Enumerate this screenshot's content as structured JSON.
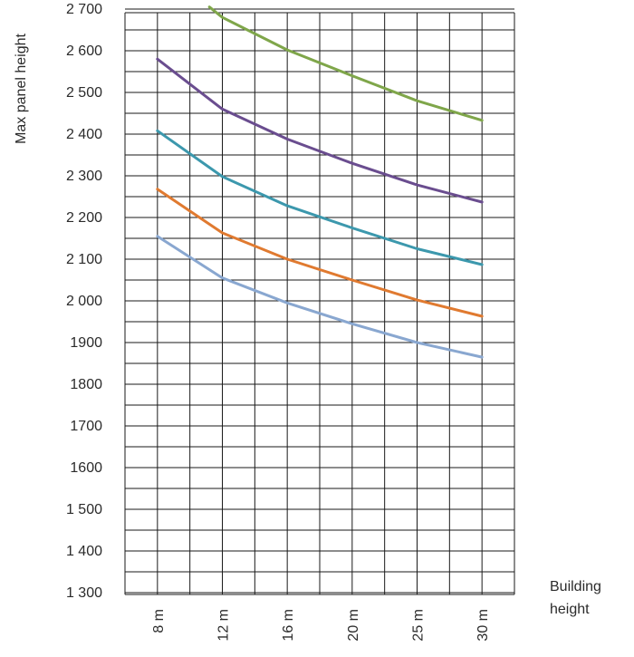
{
  "chart_data": {
    "type": "line",
    "title": "",
    "ylabel": "Max panel height",
    "xlabel_lines": [
      "Building",
      "height"
    ],
    "x_ticks": [
      "8 m",
      "12 m",
      "16 m",
      "20 m",
      "25 m",
      "30 m"
    ],
    "y_ticks": [
      "1 300",
      "1 400",
      "1 500",
      "1600",
      "1700",
      "1800",
      "1900",
      "2 000",
      "2 100",
      "2 200",
      "2 300",
      "2 400",
      "2 500",
      "2 600",
      "2 700"
    ],
    "ylim": [
      1300,
      2700
    ],
    "grid": true,
    "series": [
      {
        "color": "#89a7d0",
        "points": [
          [
            0,
            2155
          ],
          [
            2,
            2055
          ],
          [
            4,
            1995
          ],
          [
            6,
            1945
          ],
          [
            8,
            1900
          ],
          [
            10,
            1865
          ]
        ]
      },
      {
        "color": "#e07a30",
        "points": [
          [
            0,
            2268
          ],
          [
            2,
            2163
          ],
          [
            4,
            2100
          ],
          [
            6,
            2050
          ],
          [
            8,
            2002
          ],
          [
            10,
            1963
          ]
        ]
      },
      {
        "color": "#3c98ad",
        "points": [
          [
            0,
            2408
          ],
          [
            2,
            2298
          ],
          [
            4,
            2228
          ],
          [
            6,
            2175
          ],
          [
            8,
            2125
          ],
          [
            10,
            2087
          ]
        ]
      },
      {
        "color": "#6a4d8f",
        "points": [
          [
            0,
            2580
          ],
          [
            2,
            2460
          ],
          [
            4,
            2388
          ],
          [
            6,
            2330
          ],
          [
            8,
            2278
          ],
          [
            10,
            2237
          ]
        ]
      },
      {
        "color": "#7fa64a",
        "points": [
          [
            1.6,
            2705
          ],
          [
            2,
            2680
          ],
          [
            4,
            2602
          ],
          [
            6,
            2540
          ],
          [
            8,
            2480
          ],
          [
            10,
            2433
          ]
        ]
      }
    ]
  }
}
